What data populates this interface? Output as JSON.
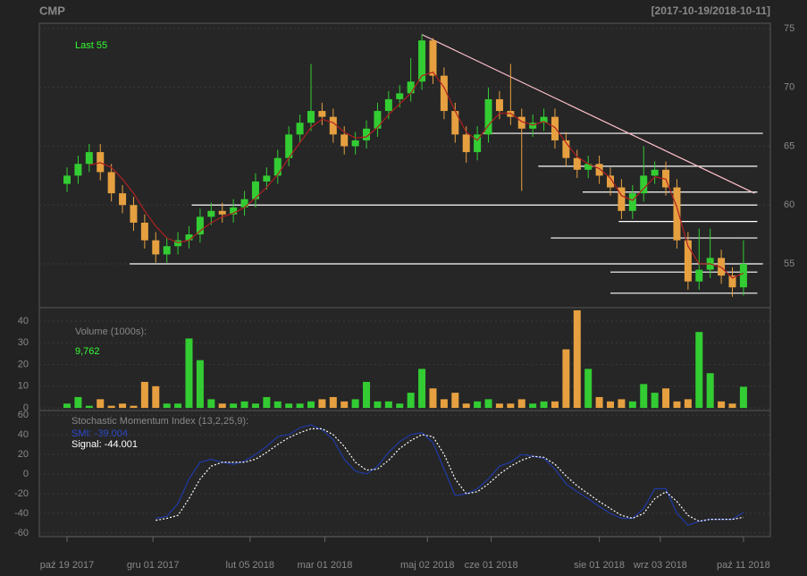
{
  "chart_data": {
    "type": "candlestick",
    "title": "CMP",
    "range_label": "[2017-10-19/2018-10-11]",
    "last_label": "Last 55",
    "volume_title": "Volume (1000s):",
    "volume_last": "9,762",
    "smi_title": "Stochastic Momentum Index (13,2,25,9):",
    "smi_label": "SMI: -39.004",
    "signal_label": "Signal: -44.001",
    "up_color": "#33cc33",
    "down_color": "#e6a040",
    "sma_color": "#b02020",
    "smi_color": "#1f3aa8",
    "signal_color": "#ffffff",
    "level_color": "#ffffff",
    "trend_color": "#ffc0cb",
    "x": [
      0,
      4,
      8,
      12,
      16,
      20,
      24,
      28,
      32,
      36,
      40,
      44,
      48,
      52,
      56,
      60,
      64,
      68,
      72,
      76,
      80,
      84,
      88,
      92,
      96,
      100,
      104,
      108,
      112,
      116,
      120,
      124,
      128,
      132,
      136,
      140,
      144,
      148,
      152,
      156,
      160,
      164,
      168,
      172,
      176,
      180,
      184,
      188,
      192,
      196,
      200,
      204,
      208,
      212,
      216,
      220,
      224,
      228,
      232,
      236,
      240,
      244
    ],
    "open": [
      61.8,
      62.5,
      63.5,
      64.5,
      62.8,
      61,
      60,
      58.5,
      57,
      55.8,
      56.5,
      57,
      57.5,
      59,
      59.5,
      59.2,
      59.8,
      60.5,
      62,
      62.5,
      64,
      66,
      67,
      68,
      67.5,
      66,
      65,
      65.5,
      66.5,
      68,
      69,
      69.5,
      70.5,
      74,
      71,
      68,
      66,
      64.5,
      66,
      69,
      68,
      67.5,
      66.5,
      67,
      67.5,
      65.5,
      64,
      63,
      63.5,
      62.5,
      61.5,
      59.5,
      61,
      62.5,
      63,
      61.5,
      57,
      53.5,
      54.5,
      55.5,
      54,
      53
    ],
    "high": [
      63.2,
      64.2,
      65.2,
      65.2,
      63.5,
      61.7,
      60.7,
      59.2,
      57.7,
      57.2,
      57.7,
      58.2,
      59.7,
      60.2,
      60.2,
      60.5,
      61.2,
      62.7,
      63.2,
      64.7,
      66.7,
      67.7,
      72,
      68.7,
      68.2,
      66.7,
      66.2,
      67.2,
      68.7,
      69.7,
      70.2,
      72.5,
      74.5,
      74.2,
      71.7,
      68.7,
      66.7,
      66.7,
      70,
      69.7,
      72,
      68.2,
      67.7,
      68.2,
      68.2,
      66.2,
      64.7,
      64.2,
      64.2,
      63.2,
      62.2,
      61.7,
      65,
      63.7,
      63.7,
      62.2,
      57.7,
      58,
      58,
      56.2,
      54.7,
      57
    ],
    "low": [
      61.1,
      61.8,
      62.8,
      62.1,
      60.3,
      59.3,
      57.8,
      56.3,
      55.1,
      55.1,
      55.8,
      56.3,
      56.8,
      58.3,
      58.5,
      58.5,
      59.1,
      59.8,
      61.3,
      61.8,
      63.3,
      65.3,
      66.3,
      66.8,
      65.3,
      64.3,
      64.3,
      64.8,
      65.8,
      67.3,
      68.3,
      68.8,
      69.8,
      70.3,
      67.3,
      65.3,
      63.6,
      63.8,
      65.3,
      67.3,
      66.8,
      61.2,
      65.8,
      66.3,
      64.8,
      63.3,
      62.3,
      62.3,
      61.8,
      60.8,
      58.8,
      58.8,
      60.3,
      61.8,
      60.8,
      56.3,
      52.8,
      52.8,
      53.8,
      53.3,
      52.2,
      52.3
    ],
    "close": [
      62.5,
      63.5,
      64.5,
      62.8,
      61,
      60,
      58.5,
      57,
      55.8,
      56.5,
      57,
      57.5,
      59,
      59.5,
      59.2,
      59.8,
      60.5,
      62,
      62.5,
      64,
      66,
      67,
      68,
      67.5,
      66,
      65,
      65.5,
      66.5,
      68,
      69,
      69.5,
      70.5,
      74,
      71,
      68,
      66,
      64.5,
      66,
      69,
      68,
      67.5,
      66.5,
      67,
      67.5,
      65.5,
      64,
      63,
      63.5,
      62.5,
      61.5,
      59.5,
      61,
      62.5,
      63,
      61.5,
      57,
      53.5,
      54.5,
      55.5,
      54,
      53,
      55
    ],
    "sma": [
      null,
      null,
      63.4,
      63.6,
      63.2,
      62.2,
      61,
      59.5,
      58.2,
      57.2,
      56.8,
      57,
      57.8,
      58.5,
      59,
      59.3,
      59.8,
      60.6,
      61.5,
      62.6,
      64,
      65.3,
      66.6,
      67.3,
      67,
      66.2,
      65.7,
      65.8,
      66.6,
      67.7,
      68.6,
      69.5,
      71,
      71.3,
      70,
      68,
      66.2,
      65.5,
      66.8,
      67.8,
      67.8,
      67.1,
      66.8,
      67.1,
      66.6,
      65.3,
      64.1,
      63.5,
      63.1,
      62.3,
      60.8,
      60.4,
      61.4,
      62.4,
      62.2,
      59.8,
      56.5,
      55,
      55,
      54.7,
      53.8,
      54.2
    ],
    "volume": [
      2,
      5,
      1,
      4,
      1,
      2,
      1,
      12,
      10,
      2,
      2,
      32,
      22,
      4,
      2,
      2,
      3,
      2,
      5,
      3,
      2,
      2,
      3,
      4,
      5,
      3,
      4,
      12,
      3,
      3,
      2,
      7,
      18,
      9,
      4,
      7,
      2,
      3,
      4,
      2,
      2,
      4,
      2,
      3,
      3,
      27,
      45,
      18,
      5,
      3,
      4,
      3,
      11,
      7,
      9,
      3,
      4,
      35,
      16,
      3,
      2,
      9.762
    ],
    "smi": [
      null,
      null,
      null,
      null,
      null,
      null,
      null,
      null,
      -45,
      -43,
      -30,
      -5,
      12,
      15,
      12,
      10,
      13,
      20,
      28,
      38,
      40,
      47,
      50,
      45,
      35,
      15,
      3,
      0,
      8,
      22,
      33,
      40,
      42,
      32,
      5,
      -22,
      -20,
      -15,
      -5,
      8,
      12,
      20,
      18,
      16,
      5,
      -10,
      -18,
      -25,
      -33,
      -40,
      -45,
      -45,
      -35,
      -15,
      -15,
      -40,
      -52,
      -48,
      -46,
      -46,
      -46,
      -39.004
    ],
    "signal": [
      null,
      null,
      null,
      null,
      null,
      null,
      null,
      null,
      -47,
      -45,
      -42,
      -25,
      -5,
      8,
      12,
      12,
      12,
      15,
      22,
      30,
      37,
      42,
      46,
      46,
      40,
      28,
      12,
      4,
      5,
      14,
      26,
      34,
      40,
      38,
      20,
      -5,
      -20,
      -18,
      -10,
      0,
      8,
      14,
      18,
      17,
      10,
      -2,
      -12,
      -20,
      -28,
      -35,
      -42,
      -45,
      -40,
      -25,
      -18,
      -28,
      -42,
      -48,
      -46,
      -46,
      -46,
      -44.001
    ],
    "levels": [
      {
        "price": 55,
        "x": [
          22.6,
          251
        ]
      },
      {
        "price": 52.5,
        "x": [
          196,
          249
        ]
      },
      {
        "price": 54.3,
        "x": [
          196,
          249
        ]
      },
      {
        "price": 57.2,
        "x": [
          174.5,
          249
        ]
      },
      {
        "price": 58.6,
        "x": [
          199,
          249
        ]
      },
      {
        "price": 60,
        "x": [
          45,
          249
        ]
      },
      {
        "price": 61.1,
        "x": [
          186,
          249
        ]
      },
      {
        "price": 63.3,
        "x": [
          170,
          249
        ]
      },
      {
        "price": 66.1,
        "x": [
          150,
          251
        ]
      }
    ],
    "trendline": {
      "x": [
        128,
        248
      ],
      "price": [
        74.5,
        61
      ]
    },
    "xlim": [
      -10,
      253.7
    ],
    "xticks": [
      {
        "value": 0,
        "label": "paź 19 2017"
      },
      {
        "value": 31,
        "label": "gru 01 2017"
      },
      {
        "value": 66,
        "label": "lut 05 2018"
      },
      {
        "value": 93,
        "label": "mar 01 2018"
      },
      {
        "value": 130,
        "label": "maj 02 2018"
      },
      {
        "value": 153,
        "label": "cze 01 2018"
      },
      {
        "value": 192,
        "label": "sie 01 2018"
      },
      {
        "value": 214,
        "label": "wrz 03 2018"
      },
      {
        "value": 244,
        "label": "paź 11 2018"
      }
    ],
    "ylim": [
      51.27,
      75.46
    ],
    "yticks": [
      55,
      60,
      65,
      70,
      75
    ],
    "vol_ylim": [
      -1.2,
      46.2
    ],
    "vol_yticks": [
      0,
      10,
      20,
      30,
      40
    ],
    "smi_ylim": [
      -63.6,
      64.5
    ],
    "smi_yticks": [
      -60,
      -40,
      -20,
      0,
      20,
      40,
      60
    ]
  }
}
